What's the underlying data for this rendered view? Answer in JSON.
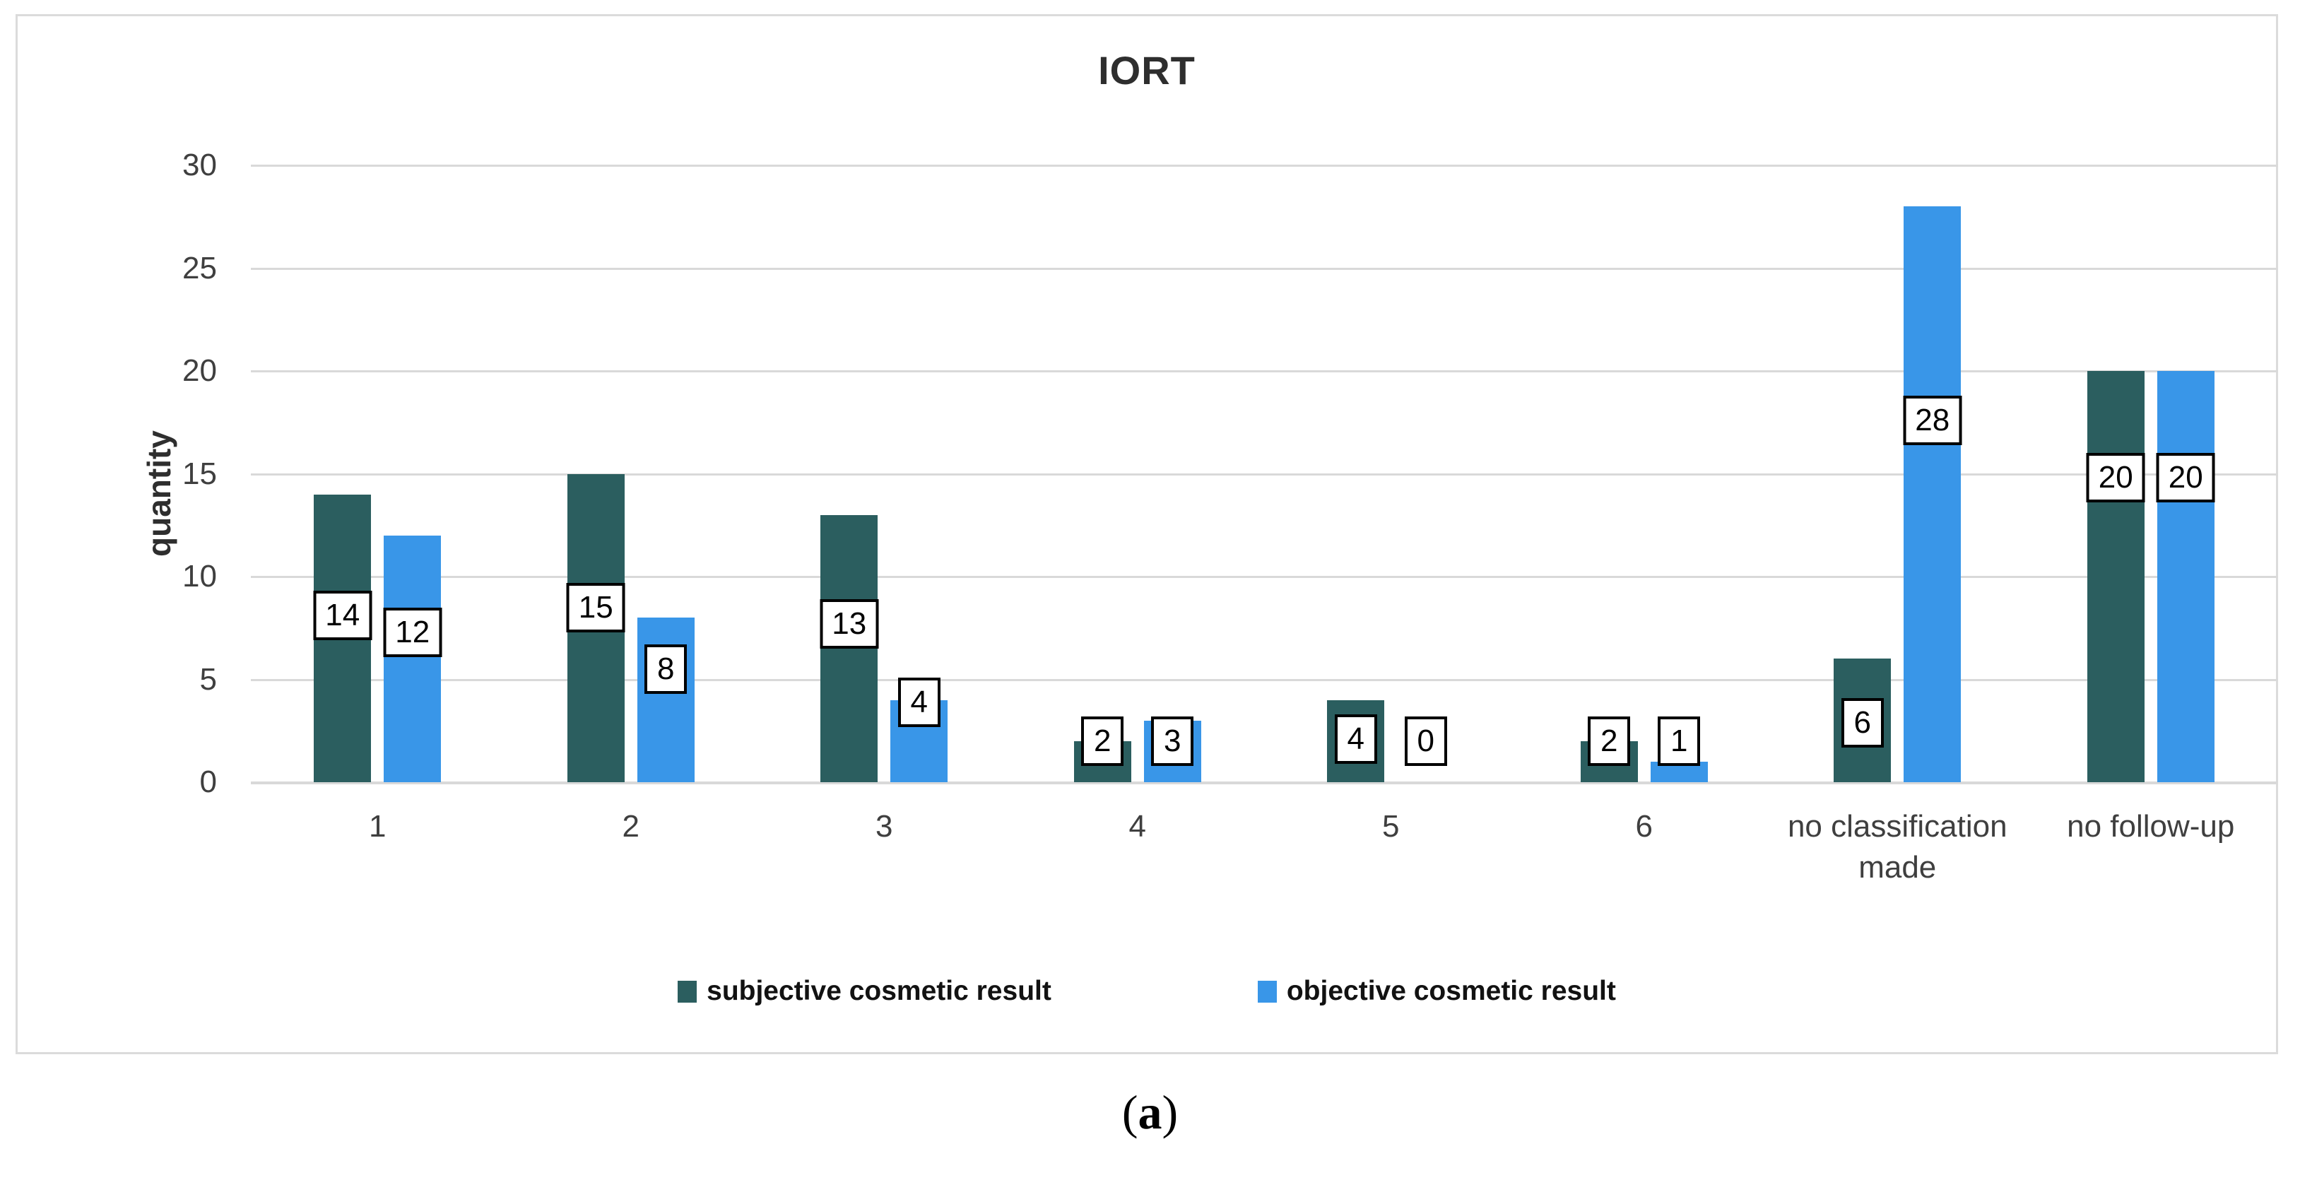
{
  "figure": {
    "caption": {
      "open": "(",
      "letter": "a",
      "close": ")"
    }
  },
  "chart_data": {
    "type": "bar",
    "title": "IORT",
    "xlabel": "",
    "ylabel": "quantity",
    "ylim": [
      0,
      30
    ],
    "ytick_step": 5,
    "grid": true,
    "legend_position": "bottom-center",
    "categories": [
      "1",
      "2",
      "3",
      "4",
      "5",
      "6",
      "no classification made",
      "no follow-up"
    ],
    "series": [
      {
        "name": "subjective cosmetic result",
        "color": "#2B5E5F",
        "values": [
          14,
          15,
          13,
          2,
          4,
          2,
          6,
          20
        ],
        "label_centers_units": [
          8.1,
          8.5,
          7.7,
          2.0,
          2.1,
          2.0,
          2.9,
          14.8
        ]
      },
      {
        "name": "objective cosmetic result",
        "color": "#3996E8",
        "values": [
          12,
          8,
          4,
          3,
          0,
          1,
          28,
          20
        ],
        "label_centers_units": [
          7.3,
          5.5,
          3.9,
          2.0,
          2.0,
          2.0,
          17.6,
          14.8
        ]
      }
    ],
    "colors": {
      "gridline": "#D9D9D9",
      "tick_text": "#3F3F3F",
      "label_box_border": "#000000",
      "label_box_bg": "#FFFFFF"
    }
  }
}
